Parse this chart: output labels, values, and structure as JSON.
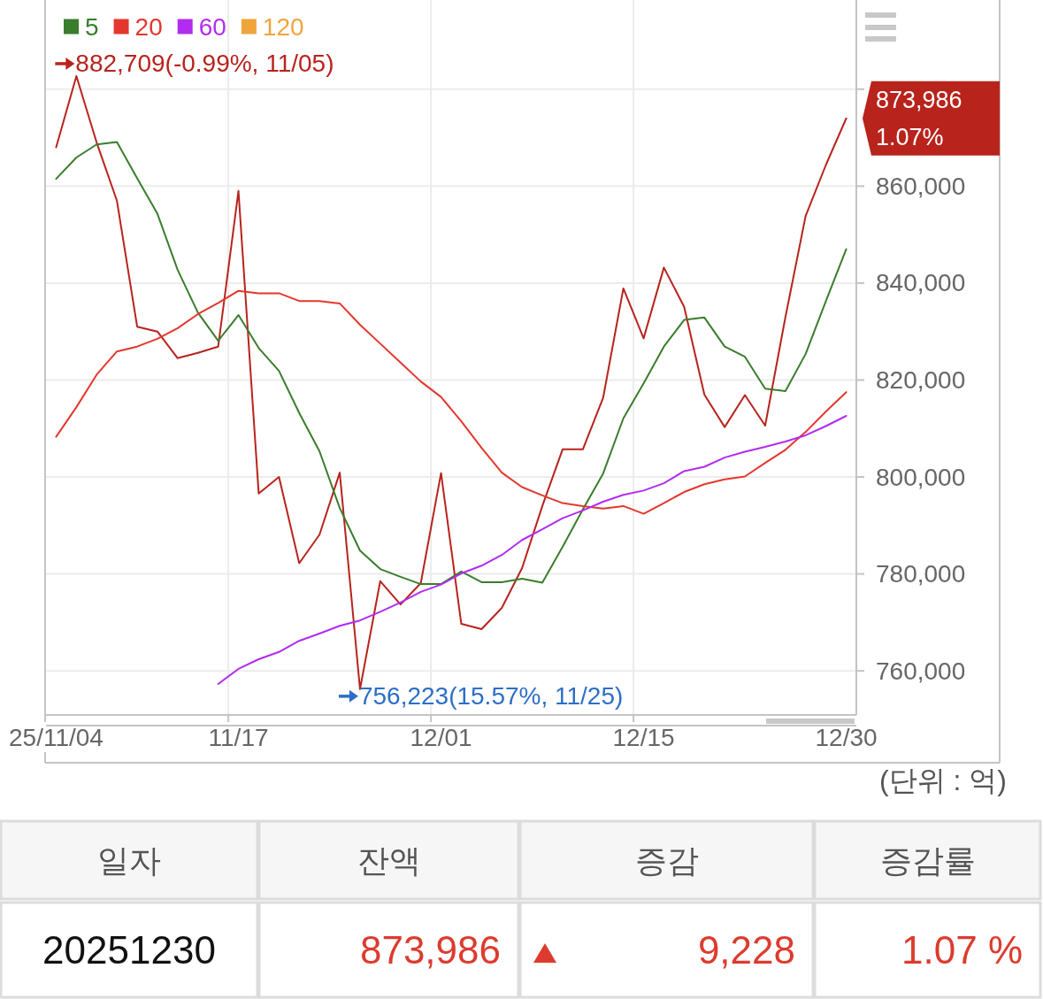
{
  "chart_data": [
    {
      "type": "line",
      "categories": [
        "25/11/04",
        null,
        null,
        null,
        null,
        null,
        null,
        null,
        null,
        "11/17",
        null,
        null,
        null,
        null,
        null,
        null,
        null,
        null,
        null,
        "12/01",
        null,
        null,
        null,
        null,
        null,
        null,
        null,
        null,
        null,
        "12/15",
        null,
        null,
        null,
        null,
        null,
        null,
        null,
        null,
        null,
        "12/30"
      ],
      "series": [
        {
          "color": "#b8231c",
          "values": [
            868000,
            882709,
            869000,
            857000,
            831000,
            830000,
            824500,
            825600,
            826900,
            859000,
            796600,
            800000,
            782200,
            788100,
            800900,
            756223,
            778500,
            773700,
            778100,
            800800,
            769700,
            768600,
            773000,
            781200,
            794000,
            805700,
            805700,
            816300,
            838900,
            828600,
            843200,
            835100,
            817000,
            810300,
            816900,
            810600,
            833000,
            853900,
            864400,
            873986
          ]
        },
        {
          "name": "5",
          "color": "#3a7d2c",
          "values": [
            861500,
            865900,
            868600,
            869100,
            861600,
            854300,
            842700,
            833900,
            828100,
            833400,
            826600,
            821900,
            813200,
            805300,
            793600,
            784800,
            781000,
            779400,
            777900,
            777900,
            780500,
            778300,
            778300,
            779000,
            778200,
            785600,
            793300,
            800700,
            812100,
            819300,
            826900,
            832400,
            832900,
            826900,
            824800,
            818200,
            817700,
            825400,
            836300,
            847000
          ]
        },
        {
          "name": "20",
          "color": "#e4372d",
          "values": [
            808300,
            814400,
            821100,
            825900,
            826900,
            828500,
            830700,
            833600,
            835900,
            838400,
            837900,
            837900,
            836300,
            836300,
            835800,
            831400,
            827500,
            823600,
            819700,
            816500,
            811500,
            806000,
            800900,
            797900,
            796200,
            794600,
            794000,
            793500,
            794000,
            792400,
            794600,
            796900,
            798500,
            799500,
            800100,
            802900,
            805600,
            809300,
            813500,
            817500
          ]
        },
        {
          "name": "60",
          "color": "#b22cf0",
          "values": [
            null,
            null,
            null,
            null,
            null,
            null,
            null,
            null,
            757300,
            760400,
            762400,
            763900,
            766200,
            767700,
            769300,
            770400,
            772200,
            774100,
            776300,
            777800,
            780100,
            781700,
            783900,
            787000,
            789200,
            791500,
            793100,
            794900,
            796300,
            797200,
            798700,
            801200,
            802100,
            804000,
            805200,
            806200,
            807300,
            808600,
            810500,
            812600
          ]
        },
        {
          "name": "120",
          "color": "#f0a43c",
          "values": [
            null,
            null,
            null,
            null,
            null,
            null,
            null,
            null,
            null,
            null,
            null,
            null,
            null,
            null,
            null,
            null,
            null,
            null,
            null,
            null,
            null,
            null,
            null,
            null,
            null,
            null,
            null,
            null,
            null,
            null,
            null,
            null,
            null,
            null,
            null,
            null,
            null,
            null,
            null,
            null
          ]
        }
      ],
      "ylim": [
        750900,
        898400
      ],
      "yticks": [
        {
          "value": 760000,
          "label": "760,000"
        },
        {
          "value": 780000,
          "label": "780,000"
        },
        {
          "value": 800000,
          "label": "800,000"
        },
        {
          "value": 820000,
          "label": "820,000"
        },
        {
          "value": 840000,
          "label": "840,000"
        },
        {
          "value": 860000,
          "label": "860,000"
        },
        {
          "value": 880000,
          "label": null
        }
      ],
      "grid": true,
      "legend": "top left",
      "annotations": [
        "882,709(-0.99%, 11/05)",
        "756,223(15.57%, 11/25)",
        {
          "text": "873,986",
          "x": "12/30",
          "y": 873986
        },
        {
          "text": "1.07%",
          "x": "12/30",
          "y": 873986
        },
        "(단위 : 억)"
      ]
    },
    {
      "type": "other",
      "annotations": [
        "일자",
        "잔액",
        "증감",
        "증감률",
        "20251230",
        "873,986",
        "9,228",
        "1.07 %"
      ]
    }
  ]
}
